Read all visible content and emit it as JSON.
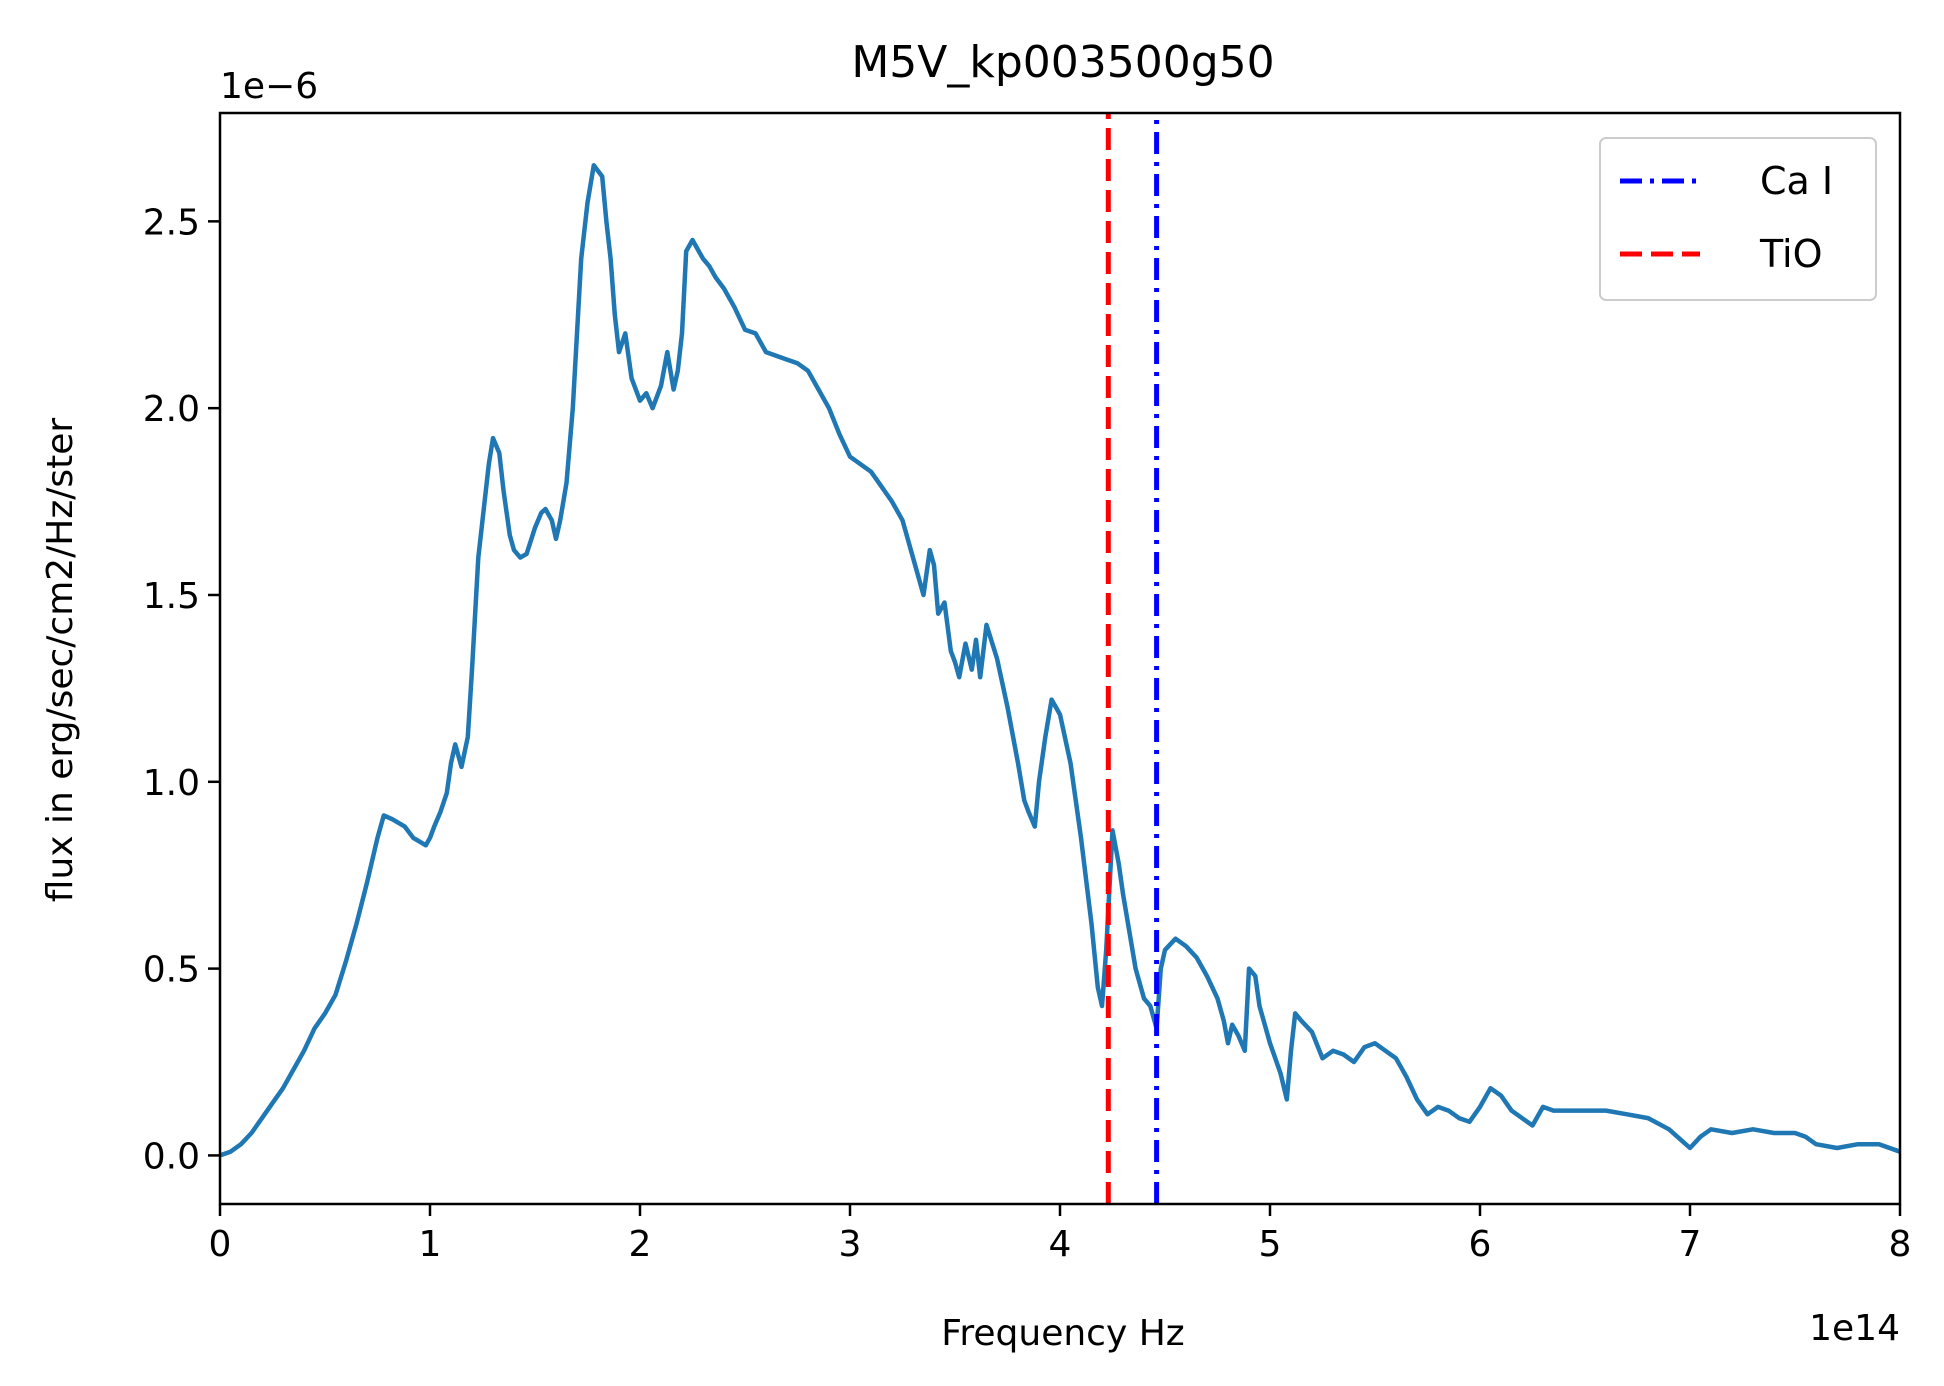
{
  "chart_data": {
    "type": "line",
    "title": "M5V_kp003500g50",
    "xlabel": "Frequency Hz",
    "ylabel": "flux in erg/sec/cm2/Hz/ster",
    "x_offset_label": "1e14",
    "y_offset_label": "1e−6",
    "xlim": [
      0,
      8
    ],
    "ylim": [
      -0.13,
      2.79
    ],
    "x_ticks": [
      0,
      1,
      2,
      3,
      4,
      5,
      6,
      7,
      8
    ],
    "x_tick_labels": [
      "0",
      "1",
      "2",
      "3",
      "4",
      "5",
      "6",
      "7",
      "8"
    ],
    "y_ticks": [
      0.0,
      0.5,
      1.0,
      1.5,
      2.0,
      2.5
    ],
    "y_tick_labels": [
      "0.0",
      "0.5",
      "1.0",
      "1.5",
      "2.0",
      "2.5"
    ],
    "grid": false,
    "legend_position": "top-right",
    "series": [
      {
        "color": "#1f77b4",
        "x": [
          0.0,
          0.05,
          0.1,
          0.15,
          0.2,
          0.25,
          0.3,
          0.35,
          0.4,
          0.45,
          0.5,
          0.52,
          0.55,
          0.6,
          0.65,
          0.7,
          0.75,
          0.78,
          0.82,
          0.88,
          0.92,
          0.95,
          0.98,
          1.0,
          1.02,
          1.05,
          1.08,
          1.1,
          1.12,
          1.15,
          1.18,
          1.2,
          1.23,
          1.26,
          1.28,
          1.3,
          1.33,
          1.35,
          1.38,
          1.4,
          1.43,
          1.46,
          1.5,
          1.53,
          1.55,
          1.58,
          1.6,
          1.62,
          1.65,
          1.68,
          1.7,
          1.72,
          1.75,
          1.78,
          1.82,
          1.84,
          1.86,
          1.88,
          1.9,
          1.93,
          1.96,
          2.0,
          2.03,
          2.06,
          2.1,
          2.13,
          2.16,
          2.18,
          2.2,
          2.22,
          2.25,
          2.27,
          2.3,
          2.33,
          2.36,
          2.4,
          2.45,
          2.5,
          2.55,
          2.6,
          2.65,
          2.7,
          2.75,
          2.8,
          2.85,
          2.9,
          2.95,
          3.0,
          3.05,
          3.1,
          3.15,
          3.2,
          3.25,
          3.3,
          3.35,
          3.38,
          3.4,
          3.42,
          3.45,
          3.48,
          3.5,
          3.52,
          3.55,
          3.58,
          3.6,
          3.62,
          3.65,
          3.7,
          3.75,
          3.8,
          3.83,
          3.85,
          3.88,
          3.9,
          3.93,
          3.96,
          4.0,
          4.05,
          4.1,
          4.15,
          4.18,
          4.2,
          4.22,
          4.25,
          4.28,
          4.3,
          4.33,
          4.36,
          4.4,
          4.43,
          4.46,
          4.48,
          4.5,
          4.55,
          4.6,
          4.65,
          4.7,
          4.75,
          4.78,
          4.8,
          4.82,
          4.85,
          4.88,
          4.9,
          4.93,
          4.95,
          5.0,
          5.05,
          5.08,
          5.1,
          5.12,
          5.15,
          5.2,
          5.25,
          5.3,
          5.35,
          5.4,
          5.45,
          5.5,
          5.55,
          5.6,
          5.65,
          5.7,
          5.75,
          5.8,
          5.85,
          5.9,
          5.95,
          6.0,
          6.05,
          6.1,
          6.15,
          6.2,
          6.25,
          6.3,
          6.35,
          6.4,
          6.5,
          6.6,
          6.7,
          6.8,
          6.9,
          7.0,
          7.05,
          7.1,
          7.2,
          7.3,
          7.4,
          7.5,
          7.55,
          7.6,
          7.7,
          7.8,
          7.9,
          8.0
        ],
        "y": [
          0.0,
          0.01,
          0.03,
          0.06,
          0.1,
          0.14,
          0.18,
          0.23,
          0.28,
          0.34,
          0.38,
          0.4,
          0.43,
          0.52,
          0.62,
          0.73,
          0.85,
          0.91,
          0.9,
          0.88,
          0.85,
          0.84,
          0.83,
          0.85,
          0.88,
          0.92,
          0.97,
          1.05,
          1.1,
          1.04,
          1.12,
          1.3,
          1.6,
          1.75,
          1.85,
          1.92,
          1.88,
          1.78,
          1.66,
          1.62,
          1.6,
          1.61,
          1.68,
          1.72,
          1.73,
          1.7,
          1.65,
          1.7,
          1.8,
          2.0,
          2.2,
          2.4,
          2.55,
          2.65,
          2.62,
          2.5,
          2.4,
          2.25,
          2.15,
          2.2,
          2.08,
          2.02,
          2.04,
          2.0,
          2.06,
          2.15,
          2.05,
          2.1,
          2.2,
          2.42,
          2.45,
          2.43,
          2.4,
          2.38,
          2.35,
          2.32,
          2.27,
          2.21,
          2.2,
          2.15,
          2.14,
          2.13,
          2.12,
          2.1,
          2.05,
          2.0,
          1.93,
          1.87,
          1.85,
          1.83,
          1.79,
          1.75,
          1.7,
          1.6,
          1.5,
          1.62,
          1.58,
          1.45,
          1.48,
          1.35,
          1.32,
          1.28,
          1.37,
          1.3,
          1.38,
          1.28,
          1.42,
          1.33,
          1.2,
          1.05,
          0.95,
          0.92,
          0.88,
          1.0,
          1.12,
          1.22,
          1.18,
          1.05,
          0.85,
          0.62,
          0.45,
          0.4,
          0.55,
          0.87,
          0.78,
          0.7,
          0.6,
          0.5,
          0.42,
          0.4,
          0.34,
          0.5,
          0.55,
          0.58,
          0.56,
          0.53,
          0.48,
          0.42,
          0.36,
          0.3,
          0.35,
          0.32,
          0.28,
          0.5,
          0.48,
          0.4,
          0.3,
          0.22,
          0.15,
          0.28,
          0.38,
          0.36,
          0.33,
          0.26,
          0.28,
          0.27,
          0.25,
          0.29,
          0.3,
          0.28,
          0.26,
          0.21,
          0.15,
          0.11,
          0.13,
          0.12,
          0.1,
          0.09,
          0.13,
          0.18,
          0.16,
          0.12,
          0.1,
          0.08,
          0.13,
          0.12,
          0.12,
          0.12,
          0.12,
          0.11,
          0.1,
          0.07,
          0.02,
          0.05,
          0.07,
          0.06,
          0.07,
          0.06,
          0.06,
          0.05,
          0.03,
          0.02,
          0.03,
          0.03,
          0.01
        ]
      },
      {
        "name": "Ca I",
        "color": "#0000ff",
        "style": "dashdot",
        "x": [
          4.46,
          4.46
        ],
        "y": [
          -0.13,
          2.79
        ]
      },
      {
        "name": "TiO",
        "color": "#ff0000",
        "style": "dashed",
        "x": [
          4.23,
          4.23
        ],
        "y": [
          -0.13,
          2.79
        ]
      }
    ]
  }
}
